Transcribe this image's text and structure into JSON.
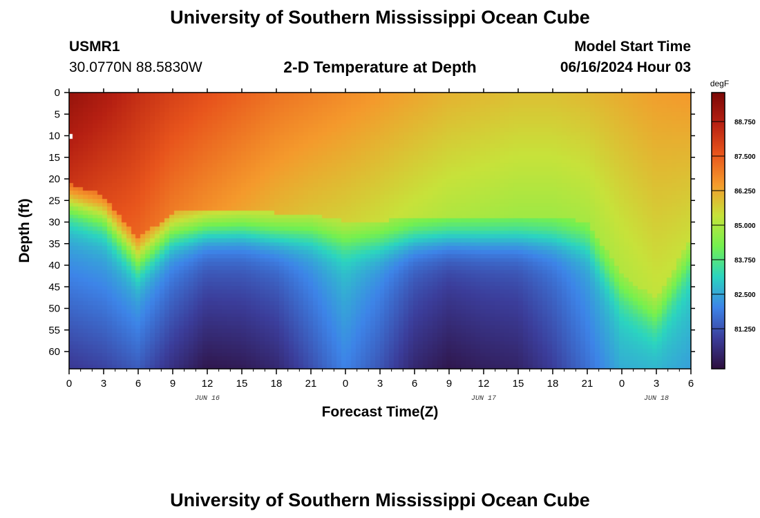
{
  "header": {
    "title_top": "University of Southern Mississippi Ocean Cube",
    "title_bottom": "University of Southern Mississippi Ocean Cube",
    "station_id": "USMR1",
    "station_coords": "30.0770N  88.5830W",
    "model_start_label": "Model Start Time",
    "model_start_value": "06/16/2024 Hour 03"
  },
  "colors": {
    "ramp": [
      "#2d0f3d",
      "#3b3d9a",
      "#3d84e8",
      "#2bd4c0",
      "#74f04f",
      "#c7e23a",
      "#f49a2c",
      "#e8551c",
      "#b62012",
      "#7a0806"
    ]
  },
  "chart_data": {
    "type": "heatmap",
    "title": "2-D Temperature at Depth",
    "xlabel": "Forecast Time(Z)",
    "ylabel": "Depth (ft)",
    "x_tick_labels": [
      "0",
      "3",
      "6",
      "9",
      "12",
      "15",
      "18",
      "21",
      "0",
      "3",
      "6",
      "9",
      "12",
      "15",
      "18",
      "21",
      "0",
      "3",
      "6"
    ],
    "x_range_hours": [
      0,
      54
    ],
    "date_labels": [
      {
        "hour": 12,
        "text": "JUN 16"
      },
      {
        "hour": 36,
        "text": "JUN 17"
      },
      {
        "hour": 51,
        "text": "JUN 18"
      }
    ],
    "y_tick_labels": [
      "0",
      "5",
      "10",
      "15",
      "20",
      "25",
      "30",
      "35",
      "40",
      "45",
      "50",
      "55",
      "60"
    ],
    "y_range_ft": [
      0,
      64
    ],
    "colorbar": {
      "unit": "degF",
      "min": 79.8,
      "max": 89.8,
      "tick_labels": [
        "81.250",
        "82.500",
        "83.750",
        "85.000",
        "86.250",
        "87.500",
        "88.750"
      ]
    },
    "surface_temp_degF": [
      89.3,
      88.9,
      88.4,
      88.0,
      87.7,
      87.4,
      87.1,
      86.9,
      86.7,
      86.5,
      86.3,
      86.1,
      86.0,
      85.9,
      85.9,
      86.0,
      86.2,
      86.4,
      86.5
    ],
    "mixed_layer_depth_ft": [
      27,
      30,
      40,
      34,
      33,
      33,
      34,
      34,
      36,
      36,
      35,
      35,
      35,
      35,
      35,
      36,
      48,
      54,
      40
    ],
    "bottom_temp_degF": [
      80.8,
      81.0,
      81.4,
      80.6,
      80.0,
      80.1,
      80.4,
      81.2,
      82.0,
      81.3,
      80.4,
      80.0,
      80.2,
      80.3,
      80.9,
      81.7,
      82.6,
      82.7,
      82.4
    ]
  }
}
